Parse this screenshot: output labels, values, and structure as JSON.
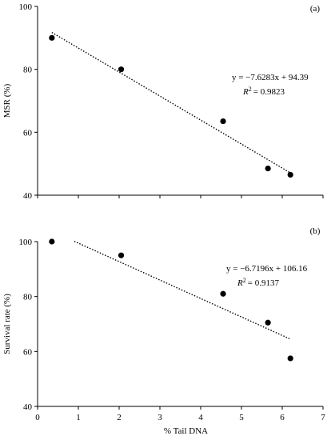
{
  "chart_data": [
    {
      "type": "scatter",
      "panel_label": "(a)",
      "ylabel": "MSR (%)",
      "xlabel": "",
      "xlim": [
        0,
        7
      ],
      "ylim": [
        40,
        100
      ],
      "yticks": [
        "40",
        "60",
        "80",
        "100"
      ],
      "x_tick_labels_shown": false,
      "points": [
        {
          "x": 0.35,
          "y": 90
        },
        {
          "x": 2.05,
          "y": 80
        },
        {
          "x": 4.55,
          "y": 63.5
        },
        {
          "x": 5.65,
          "y": 48.5
        },
        {
          "x": 6.2,
          "y": 46.5
        }
      ],
      "trendline": {
        "slope": -7.6283,
        "intercept": 94.39,
        "x_range": [
          0.35,
          6.2
        ]
      },
      "equation": "y = −7.6283x + 94.39",
      "r2_label": "R",
      "r2_value": "= 0.9823"
    },
    {
      "type": "scatter",
      "panel_label": "(b)",
      "ylabel": "Survival rate (%)",
      "xlabel": "% Tail DNA",
      "xlim": [
        0,
        7
      ],
      "ylim": [
        40,
        100
      ],
      "yticks": [
        "40",
        "60",
        "80",
        "100"
      ],
      "xticks": [
        "0",
        "1",
        "2",
        "3",
        "4",
        "5",
        "6",
        "7"
      ],
      "x_tick_labels_shown": true,
      "points": [
        {
          "x": 0.35,
          "y": 100
        },
        {
          "x": 2.05,
          "y": 95
        },
        {
          "x": 4.55,
          "y": 81
        },
        {
          "x": 5.65,
          "y": 70.5
        },
        {
          "x": 6.2,
          "y": 57.5
        }
      ],
      "trendline": {
        "slope": -6.7196,
        "intercept": 106.16,
        "x_range": [
          0.9,
          6.2
        ]
      },
      "equation": "y = −6.7196x + 106.16",
      "r2_label": "R",
      "r2_value": "= 0.9137"
    }
  ]
}
